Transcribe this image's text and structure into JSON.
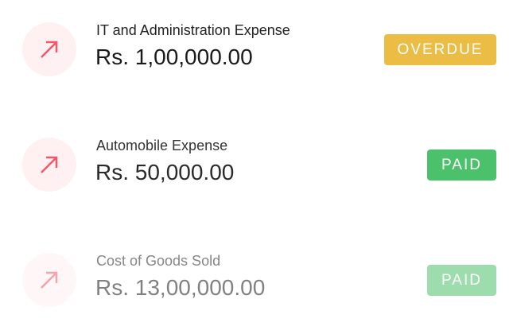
{
  "transactions": [
    {
      "title": "IT and Administration Expense",
      "amount": "Rs. 1,00,000.00",
      "status": "OVERDUE",
      "status_color": "#ebbd44",
      "icon": "arrow-up-right-icon"
    },
    {
      "title": "Automobile Expense",
      "amount": "Rs. 50,000.00",
      "status": "PAID",
      "status_color": "#4cc16b",
      "icon": "arrow-up-right-icon"
    },
    {
      "title": "Cost of Goods Sold",
      "amount": "Rs. 13,00,000.00",
      "status": "PAID",
      "status_color": "#4cc16b",
      "icon": "arrow-up-right-icon"
    }
  ],
  "icon_color": "#f2576a"
}
